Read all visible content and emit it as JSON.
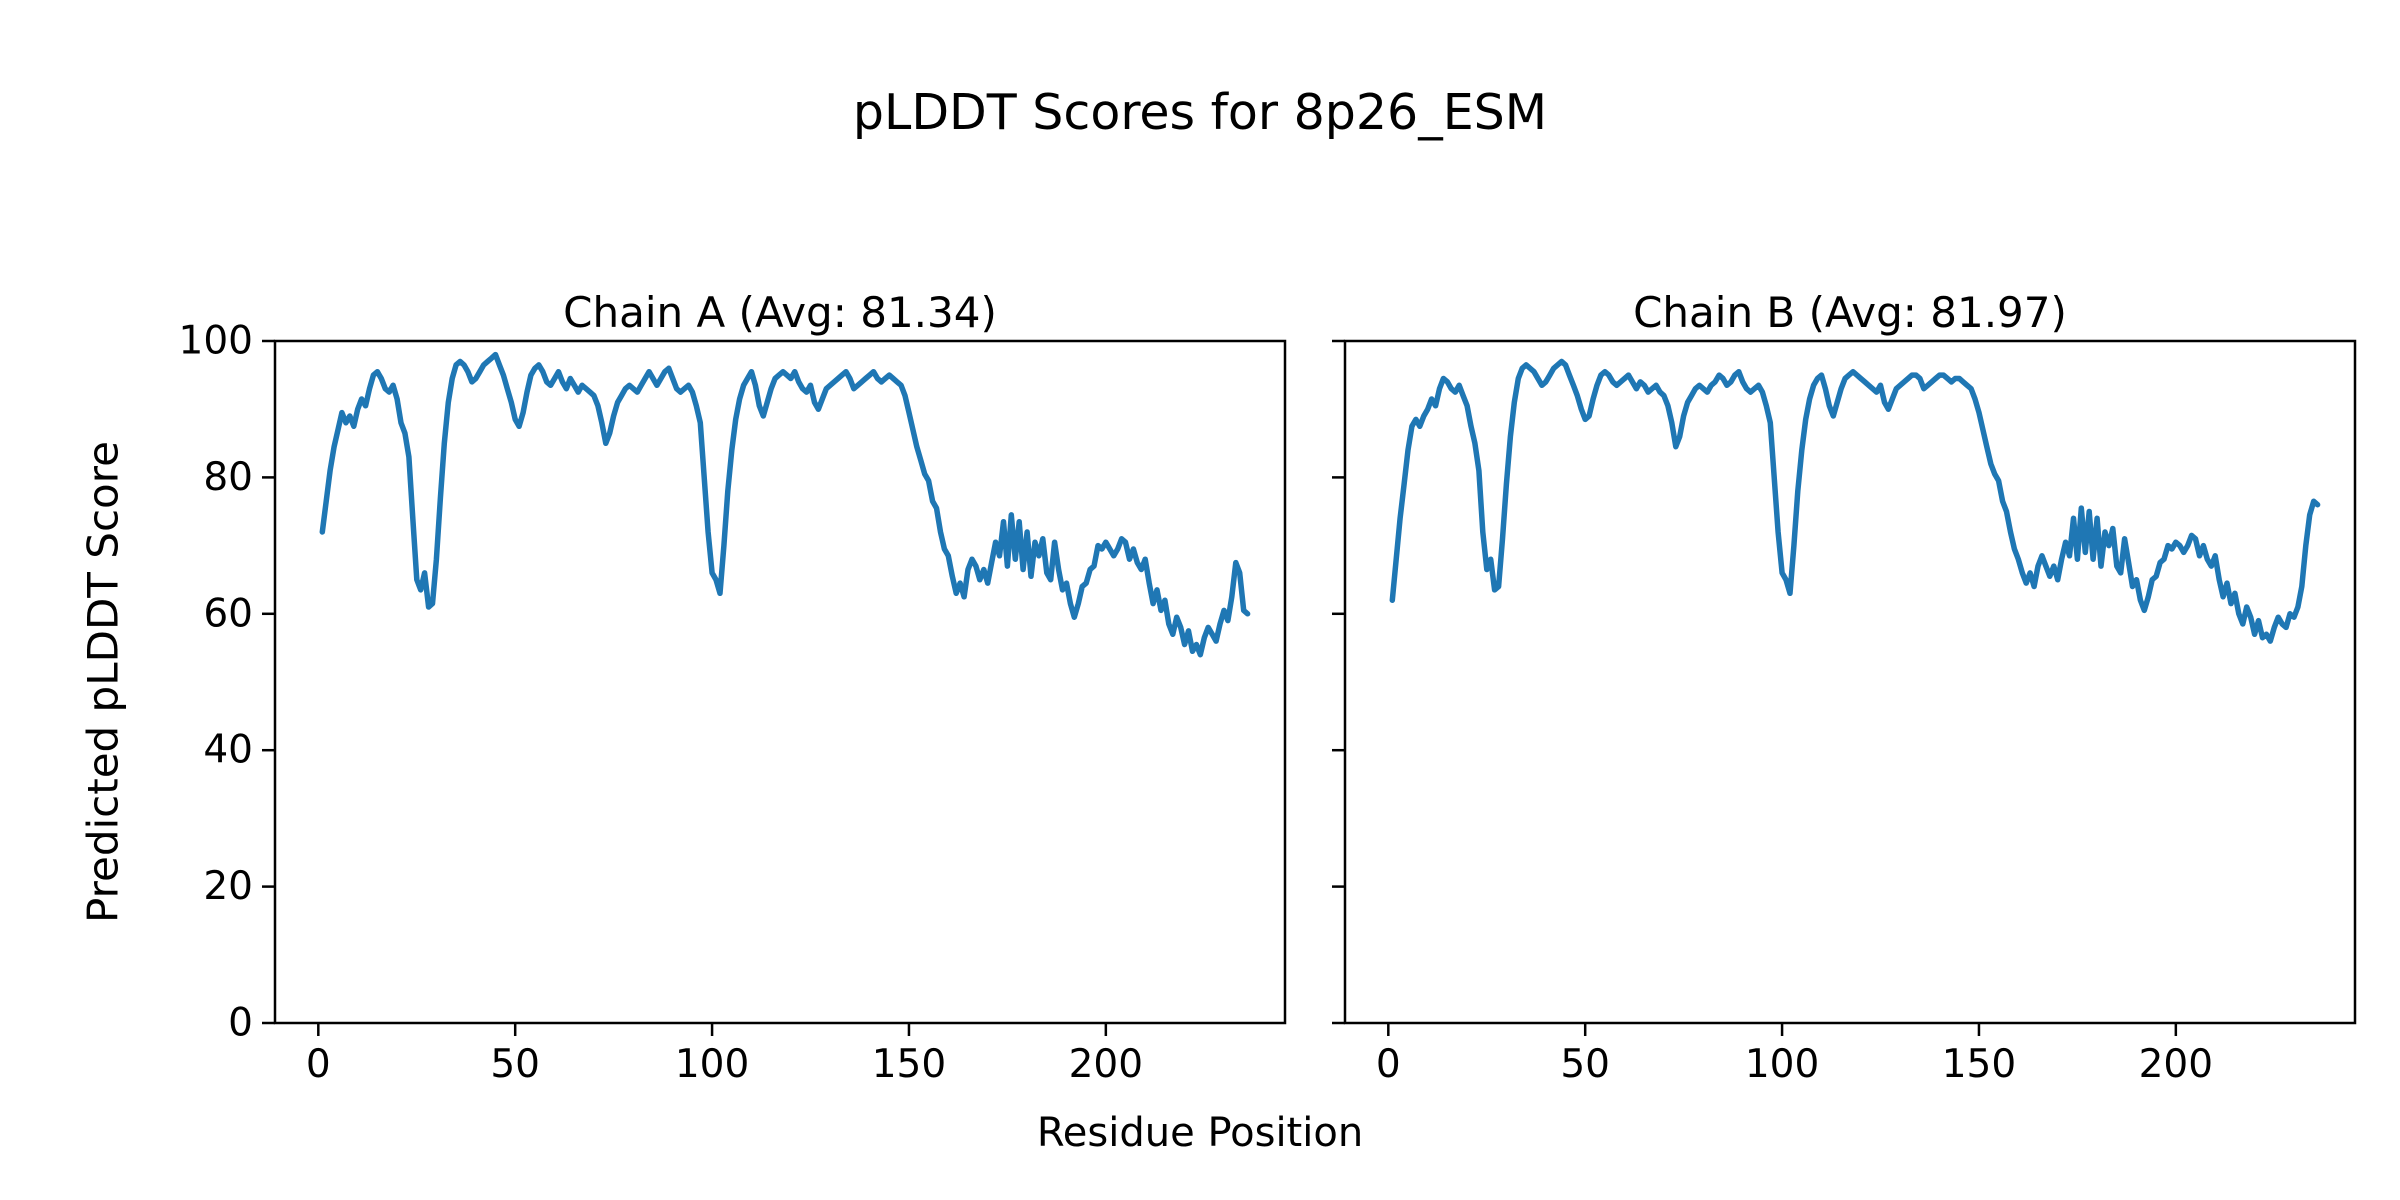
{
  "figure": {
    "title": "pLDDT Scores for 8p26_ESM",
    "xlabel": "Residue Position",
    "ylabel": "Predicted pLDDT Score",
    "background": "#ffffff",
    "text_color": "#000000",
    "spine_color": "#000000"
  },
  "chart_data": [
    {
      "type": "line",
      "title": "Chain A (Avg: 81.34)",
      "chain": "A",
      "avg": 81.34,
      "line_color": "#1f77b4",
      "xlim": [
        -11,
        245.5
      ],
      "ylim": [
        0,
        100
      ],
      "xticks": [
        0,
        50,
        100,
        150,
        200
      ],
      "yticks": [
        0,
        20,
        40,
        60,
        80,
        100
      ],
      "show_ytick_labels": true,
      "x_start": 1,
      "x_step": 1,
      "values": [
        72.0,
        76.5,
        81.0,
        84.5,
        87.0,
        89.5,
        88.0,
        89.0,
        87.5,
        90.0,
        91.5,
        90.5,
        93.0,
        95.0,
        95.5,
        94.5,
        93.0,
        92.5,
        93.5,
        91.5,
        88.0,
        86.5,
        83.0,
        74.0,
        65.0,
        63.5,
        66.0,
        61.0,
        61.5,
        68.0,
        77.0,
        85.0,
        91.0,
        94.5,
        96.5,
        97.0,
        96.5,
        95.5,
        94.0,
        94.5,
        95.5,
        96.5,
        97.0,
        97.5,
        98.0,
        96.5,
        95.0,
        93.0,
        91.0,
        88.5,
        87.5,
        89.5,
        92.5,
        95.0,
        96.0,
        96.5,
        95.5,
        94.0,
        93.5,
        94.5,
        95.5,
        94.0,
        93.0,
        94.5,
        93.5,
        92.5,
        93.5,
        93.0,
        92.5,
        92.0,
        90.5,
        88.0,
        85.0,
        86.5,
        89.0,
        91.0,
        92.0,
        93.0,
        93.5,
        93.0,
        92.5,
        93.5,
        94.5,
        95.5,
        94.5,
        93.5,
        94.5,
        95.5,
        96.0,
        94.5,
        93.0,
        92.5,
        93.0,
        93.5,
        92.5,
        90.5,
        88.0,
        80.0,
        72.0,
        66.0,
        65.0,
        63.0,
        70.0,
        78.0,
        84.0,
        88.5,
        91.5,
        93.5,
        94.5,
        95.5,
        93.5,
        90.5,
        89.0,
        91.0,
        93.0,
        94.5,
        95.0,
        95.5,
        95.0,
        94.5,
        95.5,
        94.0,
        93.0,
        92.5,
        93.5,
        91.0,
        90.0,
        91.5,
        93.0,
        93.5,
        94.0,
        94.5,
        95.0,
        95.5,
        94.5,
        93.0,
        93.5,
        94.0,
        94.5,
        95.0,
        95.5,
        94.5,
        94.0,
        94.5,
        95.0,
        94.5,
        94.0,
        93.5,
        92.0,
        89.5,
        87.0,
        84.5,
        82.5,
        80.5,
        79.5,
        76.5,
        75.5,
        72.0,
        69.5,
        68.5,
        65.5,
        63.0,
        64.5,
        62.5,
        66.5,
        68.0,
        67.0,
        65.0,
        66.5,
        64.5,
        67.5,
        70.5,
        68.5,
        73.5,
        67.0,
        74.5,
        68.0,
        73.5,
        66.5,
        72.0,
        65.5,
        70.5,
        68.5,
        71.0,
        66.0,
        65.0,
        70.5,
        66.5,
        63.5,
        64.5,
        61.5,
        59.5,
        61.5,
        64.0,
        64.5,
        66.5,
        67.0,
        70.0,
        69.5,
        70.5,
        69.5,
        68.5,
        69.5,
        71.0,
        70.5,
        68.0,
        69.5,
        67.5,
        66.5,
        68.0,
        64.5,
        61.5,
        63.5,
        60.5,
        62.0,
        58.5,
        57.0,
        59.5,
        58.0,
        55.5,
        57.5,
        54.5,
        55.5,
        54.0,
        56.5,
        58.0,
        57.0,
        56.0,
        58.5,
        60.5,
        59.0,
        62.5,
        67.5,
        66.0,
        60.5,
        60.0
      ]
    },
    {
      "type": "line",
      "title": "Chain B (Avg: 81.97)",
      "chain": "B",
      "avg": 81.97,
      "line_color": "#1f77b4",
      "xlim": [
        -11,
        245.5
      ],
      "ylim": [
        0,
        100
      ],
      "xticks": [
        0,
        50,
        100,
        150,
        200
      ],
      "yticks": [
        0,
        20,
        40,
        60,
        80,
        100
      ],
      "show_ytick_labels": false,
      "x_start": 1,
      "x_step": 1,
      "values": [
        62.0,
        68.0,
        74.0,
        79.0,
        84.0,
        87.5,
        88.5,
        87.5,
        89.0,
        90.0,
        91.5,
        90.5,
        93.0,
        94.5,
        94.0,
        93.0,
        92.5,
        93.5,
        92.0,
        90.5,
        87.5,
        85.0,
        81.0,
        72.0,
        66.5,
        68.0,
        63.5,
        64.0,
        71.0,
        79.0,
        86.0,
        91.0,
        94.5,
        96.0,
        96.5,
        96.0,
        95.5,
        94.5,
        93.5,
        94.0,
        95.0,
        96.0,
        96.5,
        97.0,
        96.5,
        95.0,
        93.5,
        92.0,
        90.0,
        88.5,
        89.0,
        91.5,
        93.5,
        95.0,
        95.5,
        95.0,
        94.0,
        93.5,
        94.0,
        94.5,
        95.0,
        94.0,
        93.0,
        94.0,
        93.5,
        92.5,
        93.0,
        93.5,
        92.5,
        92.0,
        90.5,
        88.0,
        84.5,
        86.0,
        89.0,
        91.0,
        92.0,
        93.0,
        93.5,
        93.0,
        92.5,
        93.5,
        94.0,
        95.0,
        94.5,
        93.5,
        94.0,
        95.0,
        95.5,
        94.0,
        93.0,
        92.5,
        93.0,
        93.5,
        92.5,
        90.5,
        88.0,
        80.0,
        72.0,
        66.0,
        65.0,
        63.0,
        70.0,
        78.0,
        84.0,
        88.5,
        91.5,
        93.5,
        94.5,
        95.0,
        93.0,
        90.5,
        89.0,
        91.0,
        93.0,
        94.5,
        95.0,
        95.5,
        95.0,
        94.5,
        94.0,
        93.5,
        93.0,
        92.5,
        93.5,
        91.0,
        90.0,
        91.5,
        93.0,
        93.5,
        94.0,
        94.5,
        95.0,
        95.0,
        94.5,
        93.0,
        93.5,
        94.0,
        94.5,
        95.0,
        95.0,
        94.5,
        94.0,
        94.5,
        94.5,
        94.0,
        93.5,
        93.0,
        91.5,
        89.5,
        87.0,
        84.5,
        82.0,
        80.5,
        79.5,
        76.5,
        75.0,
        72.0,
        69.5,
        68.0,
        66.0,
        64.5,
        66.0,
        64.0,
        67.0,
        68.5,
        67.0,
        65.5,
        67.0,
        65.0,
        68.0,
        70.5,
        68.5,
        74.0,
        68.0,
        75.5,
        69.0,
        75.0,
        68.0,
        74.0,
        67.0,
        72.0,
        70.0,
        72.5,
        67.0,
        66.0,
        71.0,
        67.5,
        64.0,
        65.0,
        62.0,
        60.5,
        62.5,
        65.0,
        65.5,
        67.5,
        68.0,
        70.0,
        69.5,
        70.5,
        70.0,
        69.0,
        70.0,
        71.5,
        71.0,
        68.5,
        70.0,
        68.0,
        67.0,
        68.5,
        65.0,
        62.5,
        64.5,
        61.5,
        63.0,
        60.0,
        58.5,
        61.0,
        59.5,
        57.0,
        59.0,
        56.5,
        57.0,
        56.0,
        58.0,
        59.5,
        58.5,
        58.0,
        60.0,
        59.5,
        61.0,
        64.0,
        70.0,
        74.5,
        76.5,
        76.0
      ]
    }
  ]
}
